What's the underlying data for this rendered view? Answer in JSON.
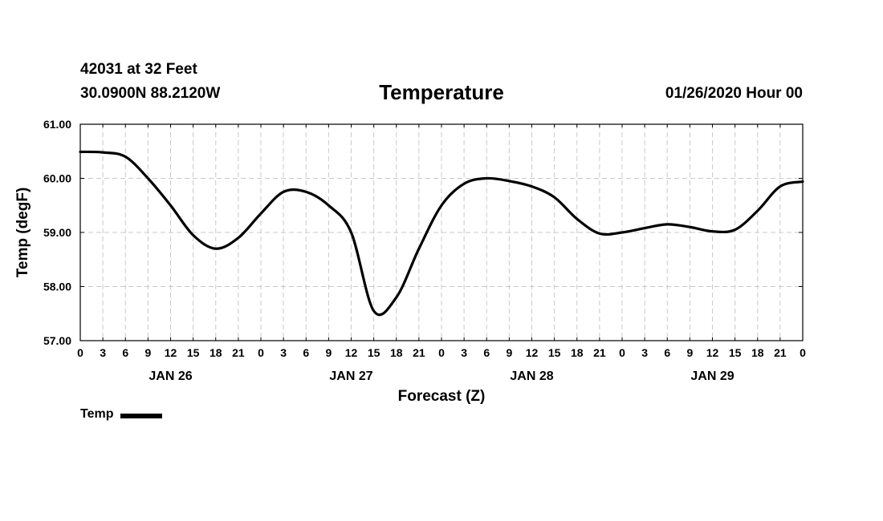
{
  "header": {
    "station": "42031 at 32 Feet",
    "location": "30.0900N 88.2120W",
    "title": "Temperature",
    "run_time": "01/26/2020 Hour 00"
  },
  "chart_data": {
    "type": "line",
    "title": "Temperature",
    "xlabel": "Forecast (Z)",
    "ylabel": "Temp (degF)",
    "x_unit": "forecast hour",
    "xlim": [
      0,
      96
    ],
    "ylim": [
      57,
      61
    ],
    "y_ticks": [
      "57.00",
      "58.00",
      "59.00",
      "60.00",
      "61.00"
    ],
    "y_tick_values": [
      57,
      58,
      59,
      60,
      61
    ],
    "x_tick_values": [
      0,
      3,
      6,
      9,
      12,
      15,
      18,
      21,
      24,
      27,
      30,
      33,
      36,
      39,
      42,
      45,
      48,
      51,
      54,
      57,
      60,
      63,
      66,
      69,
      72,
      75,
      78,
      81,
      84,
      87,
      90,
      93,
      96
    ],
    "x_tick_labels": [
      "0",
      "3",
      "6",
      "9",
      "12",
      "15",
      "18",
      "21",
      "0",
      "3",
      "6",
      "9",
      "12",
      "15",
      "18",
      "21",
      "0",
      "3",
      "6",
      "9",
      "12",
      "15",
      "18",
      "21",
      "0",
      "3",
      "6",
      "9",
      "12",
      "15",
      "18",
      "21",
      "0"
    ],
    "day_labels": [
      "JAN 26",
      "JAN 27",
      "JAN 28",
      "JAN 29"
    ],
    "day_label_hours": [
      12,
      36,
      60,
      84
    ],
    "grid": true,
    "grid_color": "#c8c8c8",
    "line_color": "#000000",
    "legend_position": "bottom-left",
    "series": [
      {
        "name": "Temp",
        "x": [
          0,
          3,
          6,
          9,
          12,
          15,
          18,
          21,
          24,
          27,
          30,
          33,
          36,
          39,
          42,
          45,
          48,
          51,
          54,
          57,
          60,
          63,
          66,
          69,
          72,
          75,
          78,
          81,
          84,
          87,
          90,
          93,
          96
        ],
        "y": [
          60.49,
          60.48,
          60.4,
          60.0,
          59.5,
          58.95,
          58.7,
          58.9,
          59.35,
          59.75,
          59.75,
          59.5,
          59.0,
          57.55,
          57.8,
          58.7,
          59.5,
          59.9,
          60.0,
          59.95,
          59.85,
          59.65,
          59.25,
          58.98,
          59.0,
          59.08,
          59.15,
          59.1,
          59.02,
          59.05,
          59.4,
          59.85,
          59.94
        ]
      }
    ]
  }
}
